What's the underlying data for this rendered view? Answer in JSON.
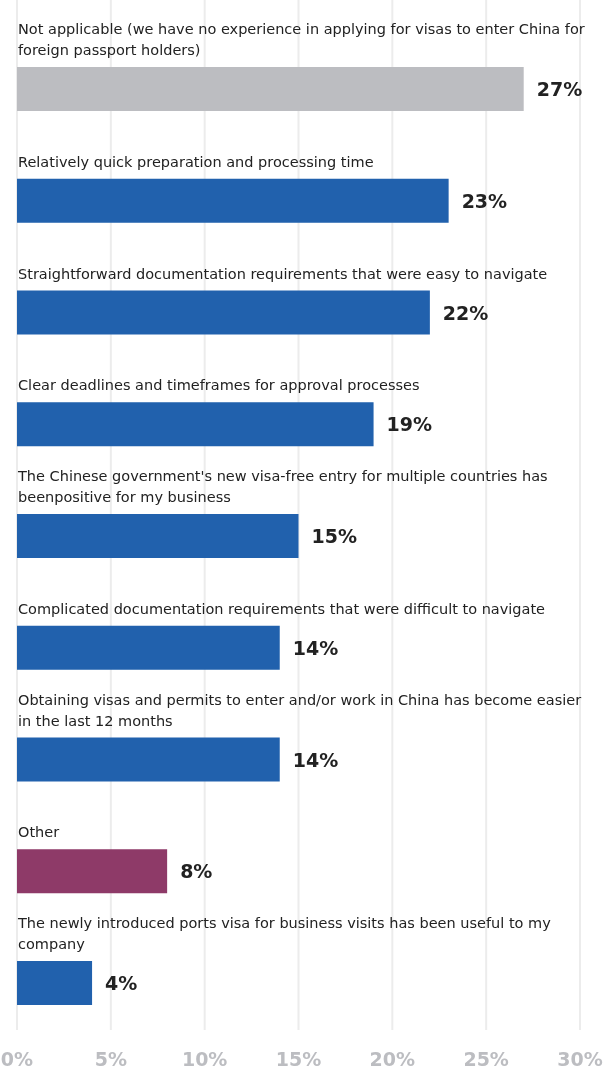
{
  "chart_data": {
    "type": "bar",
    "orientation": "horizontal",
    "categories": [
      "Not applicable (we have no experience in applying for visas to enter China for foreign passport holders)",
      "Relatively quick preparation and processing time",
      "Straightforward documentation requirements that were easy to navigate",
      "Clear deadlines and timeframes for approval processes",
      "The Chinese government's new visa-free entry for multiple countries has beenpositive for my business",
      "Complicated documentation requirements that were difficult to navigate",
      "Obtaining visas and permits to enter and/or work in China has become easier in the last 12 months",
      "Other",
      "The newly introduced ports visa for business visits has been useful to my company"
    ],
    "values": [
      27,
      23,
      22,
      19,
      15,
      14,
      14,
      8,
      4
    ],
    "value_labels": [
      "27%",
      "23%",
      "22%",
      "19%",
      "15%",
      "14%",
      "14%",
      "8%",
      "4%"
    ],
    "colors": [
      "#bcbdc1",
      "#2161ad",
      "#2161ad",
      "#2161ad",
      "#2161ad",
      "#2161ad",
      "#2161ad",
      "#8e3a68",
      "#2161ad"
    ],
    "xlim": [
      0,
      30
    ],
    "xticks": [
      {
        "value": 0,
        "label": "0%"
      },
      {
        "value": 5,
        "label": "5%"
      },
      {
        "value": 10,
        "label": "10%"
      },
      {
        "value": 15,
        "label": "15%"
      },
      {
        "value": 20,
        "label": "20%"
      },
      {
        "value": 25,
        "label": "25%"
      },
      {
        "value": 30,
        "label": "30%"
      }
    ],
    "grid": "x"
  }
}
